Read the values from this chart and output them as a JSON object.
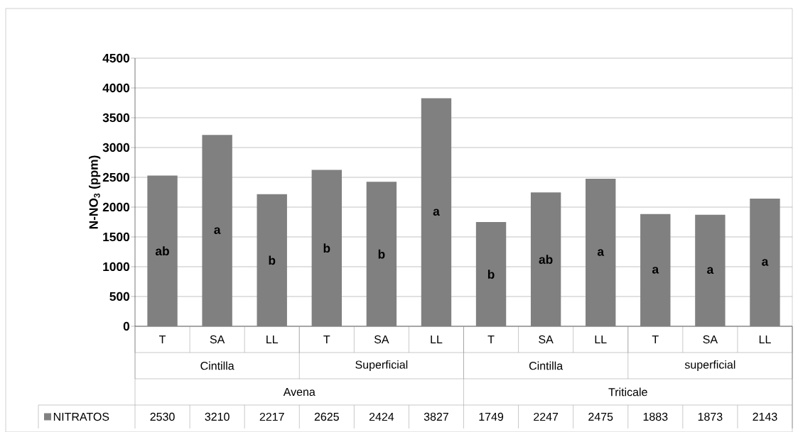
{
  "chart_data": {
    "type": "bar",
    "ylabel": "N-NO$_{3}$ (ppm)",
    "categories": [
      "T",
      "SA",
      "LL",
      "T",
      "SA",
      "LL",
      "T",
      "SA",
      "LL",
      "T",
      "SA",
      "LL"
    ],
    "series": [
      {
        "name": "NITRATOS",
        "color": "#808080",
        "values": [
          2530,
          3210,
          2217,
          2625,
          2424,
          3827,
          1749,
          2247,
          2475,
          1883,
          1873,
          2143
        ],
        "value_labels": [
          "2530",
          "3210",
          "2217",
          "2625",
          "2424",
          "3827",
          "1749",
          "2247",
          "2475",
          "1883",
          "1873",
          "2143"
        ]
      }
    ],
    "annotations": [
      "Cintilla",
      "Superficial",
      "Cintilla",
      "superficial",
      "Avena",
      "Triticale",
      "ab",
      "a",
      "b",
      "b",
      "b",
      "a",
      "b",
      "ab",
      "a",
      "a",
      "a",
      "a"
    ],
    "ylim": [
      0,
      4500
    ],
    "yticks": [
      0,
      500,
      1000,
      1500,
      2000,
      2500,
      3000,
      3500,
      4000,
      4500
    ],
    "grid": "y",
    "legend": "bottom"
  }
}
